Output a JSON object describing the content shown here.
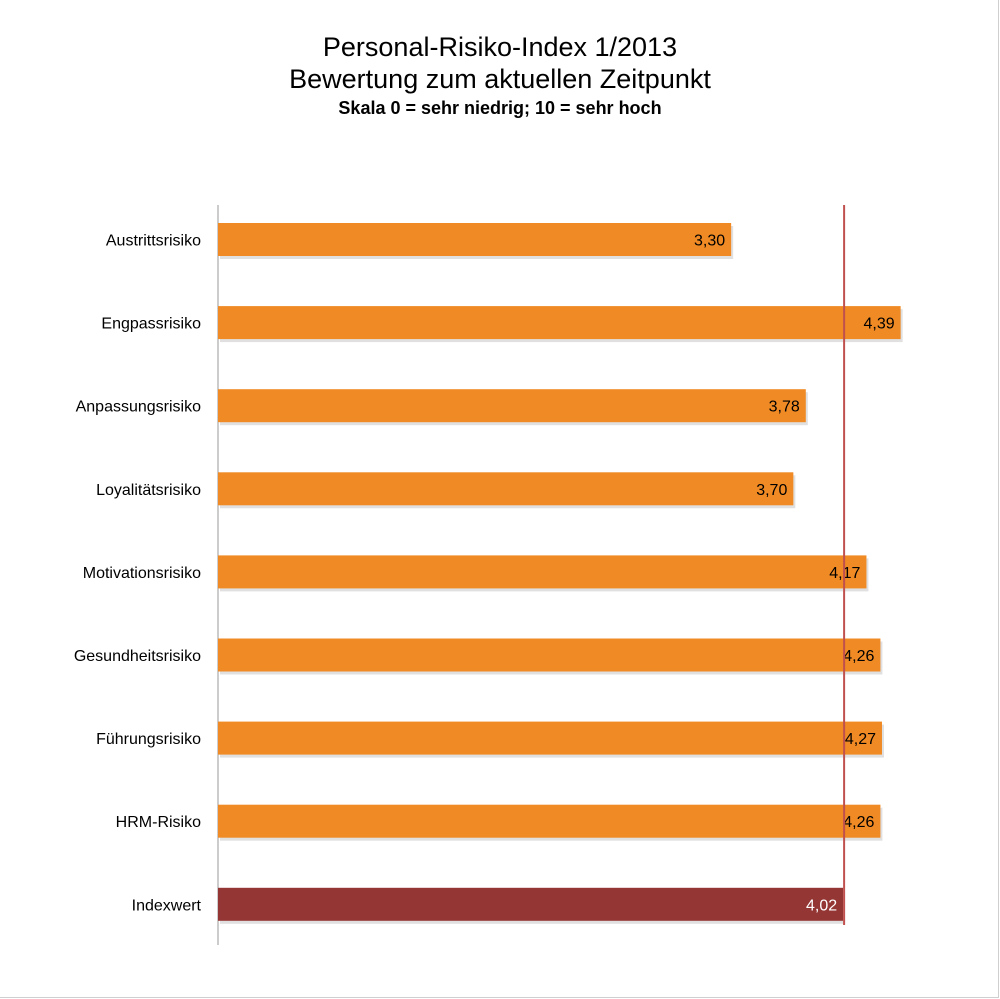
{
  "chart_data": {
    "type": "bar",
    "orientation": "horizontal",
    "title": "Personal-Risiko-Index 1/2013",
    "subtitle_line": "Bewertung zum aktuellen Zeitpunkt",
    "scale_note": "Skala 0 = sehr niedrig; 10 = sehr hoch",
    "categories": [
      "Austrittsrisiko",
      "Engpassrisiko",
      "Anpassungsrisiko",
      "Loyalitätsrisiko",
      "Motivationsrisiko",
      "Gesundheitsrisiko",
      "Führungsrisiko",
      "HRM-Risiko",
      "Indexwert"
    ],
    "values": [
      3.3,
      4.39,
      3.78,
      3.7,
      4.17,
      4.26,
      4.27,
      4.26,
      4.02
    ],
    "value_labels": [
      "3,30",
      "4,39",
      "3,78",
      "3,70",
      "4,17",
      "4,26",
      "4,27",
      "4,26",
      "4,02"
    ],
    "reference_line_value": 4.02,
    "xlim": [
      0,
      5
    ],
    "grid": false,
    "legend": "none",
    "colors": {
      "bar": "#f08a24",
      "bar_highlight": "#943634",
      "reference_line": "#c0504d",
      "axis": "#9a9a9a"
    }
  }
}
